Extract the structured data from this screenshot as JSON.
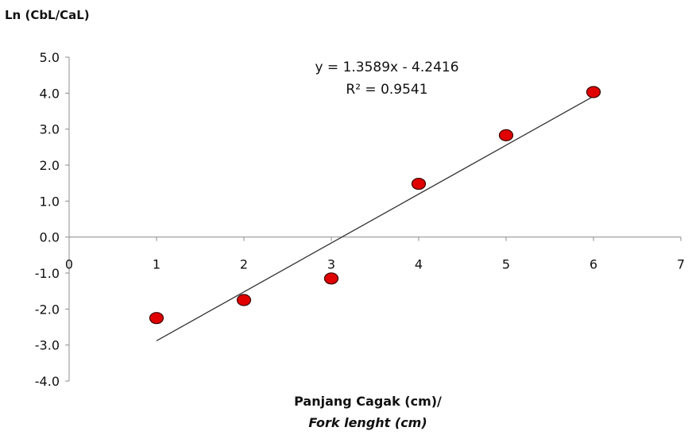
{
  "chart_data": {
    "type": "scatter",
    "ylabel": "Ln (CbL/CaL)",
    "xlabel_line1": "Panjang  Cagak  (cm)/",
    "xlabel_line2": "Fork lenght  (cm)",
    "x": [
      1,
      2,
      3,
      4,
      5,
      6
    ],
    "y": [
      -2.25,
      -1.75,
      -1.15,
      1.48,
      2.83,
      4.03
    ],
    "xlim": [
      0,
      7
    ],
    "ylim": [
      -4,
      5
    ],
    "xticks": [
      "0",
      "1",
      "2",
      "3",
      "4",
      "5",
      "6",
      "7"
    ],
    "yticks": [
      "5.0",
      "4.0",
      "3.0",
      "2.0",
      "1.0",
      "0.0",
      "-1.0",
      "-2.0",
      "-3.0",
      "-4.0"
    ],
    "trendline": {
      "slope": 1.3589,
      "intercept": -4.2416,
      "x_range": [
        1,
        6
      ]
    },
    "equation": "y = 1.3589x - 4.2416",
    "r_squared_label": "R² = 0.9541",
    "marker_color": "#e00000",
    "line_color": "#333333",
    "grid": false
  }
}
